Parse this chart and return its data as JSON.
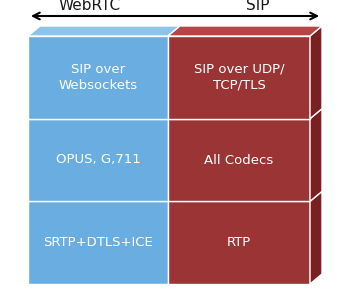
{
  "webrtc_label": "WebRTC",
  "sip_label": "SIP",
  "left_cells": [
    "SIP over\nWebsockets",
    "OPUS, G,711",
    "SRTP+DTLS+ICE"
  ],
  "right_cells": [
    "SIP over UDP/\nTCP/TLS",
    "All Codecs",
    "RTP"
  ],
  "left_face_color": "#6aade0",
  "left_top_color": "#8ec4ea",
  "left_side_color": "#5090c0",
  "right_face_color": "#9b3535",
  "right_top_color": "#b84545",
  "right_side_color": "#7a2020",
  "text_color": "#ffffff",
  "bg_color": "#ffffff",
  "label_color": "#1a1a1a",
  "label_fontsize": 11,
  "cell_fontsize": 9.5,
  "fig_width": 3.5,
  "fig_height": 3.04,
  "dpi": 100
}
